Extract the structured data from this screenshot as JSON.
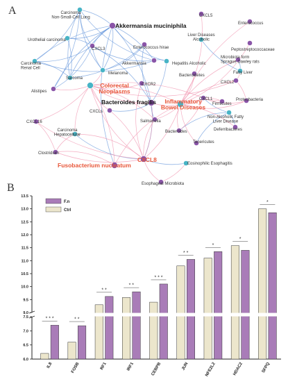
{
  "panel_a": {
    "letter": "A",
    "nodes": [
      {
        "id": "carcinoma-nsclc",
        "label": "Carcinoma\nNon-Small-Cell Lung",
        "kind": "teal",
        "style": "small"
      },
      {
        "id": "akkermansia-muciniphila",
        "label": "Akkermansia muciniphila",
        "kind": "purple",
        "style": "bold"
      },
      {
        "id": "cxcl5",
        "label": "CXCL5",
        "kind": "purple",
        "style": "small"
      },
      {
        "id": "enterococcus",
        "label": "Enterococcus",
        "kind": "purple",
        "style": "small"
      },
      {
        "id": "urothelial-carcinoma",
        "label": "Urothelial carcinoma",
        "kind": "teal",
        "style": "small"
      },
      {
        "id": "liver-diseases-alcoholic",
        "label": "Liver Diseases\nAlcoholic",
        "kind": "teal",
        "style": "small"
      },
      {
        "id": "peptostreptococcaceae",
        "label": "Peptostreptococcaceae",
        "kind": "purple",
        "style": "small"
      },
      {
        "id": "cxcl3",
        "label": "CXCL3",
        "kind": "purple",
        "style": "small"
      },
      {
        "id": "enterococcus-hirae",
        "label": "Enterococcus hirae",
        "kind": "purple",
        "style": "small"
      },
      {
        "id": "microbiota-rats",
        "label": "Microbiota form\nSprague Dawley rats",
        "kind": "purple",
        "style": "small"
      },
      {
        "id": "carcinoma-renal",
        "label": "Carcinoma\nRenal Cell",
        "kind": "teal",
        "style": "small"
      },
      {
        "id": "akkermansia",
        "label": "Akkermansia",
        "kind": "purple",
        "style": "small"
      },
      {
        "id": "hepatitis-alcoholic",
        "label": "Hepatitis Alcoholic",
        "kind": "teal",
        "style": "small"
      },
      {
        "id": "fatty-liver",
        "label": "Fatty Liver",
        "kind": "teal",
        "style": "small"
      },
      {
        "id": "melanoma",
        "label": "Melanoma",
        "kind": "teal",
        "style": "small"
      },
      {
        "id": "sarcoma",
        "label": "Sarcoma",
        "kind": "teal",
        "style": "small"
      },
      {
        "id": "bacteroidetes",
        "label": "Bacteroidetes",
        "kind": "purple",
        "style": "small"
      },
      {
        "id": "alistipes",
        "label": "Alistipes",
        "kind": "purple",
        "style": "small"
      },
      {
        "id": "cxcr2",
        "label": "CXCR2",
        "kind": "purple",
        "style": "small"
      },
      {
        "id": "cxcl2",
        "label": "CXCL2",
        "kind": "purple",
        "style": "small"
      },
      {
        "id": "colorectal-neoplasms",
        "label": "Colorectal\nNeoplasms",
        "kind": "teal",
        "style": "red"
      },
      {
        "id": "cxcl1",
        "label": "CXCL1",
        "kind": "purple",
        "style": "small"
      },
      {
        "id": "firmicutes",
        "label": "Firmicutes",
        "kind": "purple",
        "style": "small"
      },
      {
        "id": "inflammatory-bowel-diseases",
        "label": "Inflammatory\nBowel Diseases",
        "kind": "teal",
        "style": "red"
      },
      {
        "id": "proteobacteria",
        "label": "Proteobacteria",
        "kind": "purple",
        "style": "small"
      },
      {
        "id": "bacteroides-fragilis",
        "label": "Bacteroides fragilis",
        "kind": "purple",
        "style": "bold"
      },
      {
        "id": "cxcls",
        "label": "CXCLs",
        "kind": "purple",
        "style": "small"
      },
      {
        "id": "nafld",
        "label": "Non-Alcoholic Fatty\nLiver Disease",
        "kind": "teal",
        "style": "small"
      },
      {
        "id": "salmonella",
        "label": "Salmonella",
        "kind": "purple",
        "style": "small"
      },
      {
        "id": "cxcl16",
        "label": "CXCL16",
        "kind": "purple",
        "style": "small"
      },
      {
        "id": "deferribacteres",
        "label": "Deferribacteres",
        "kind": "purple",
        "style": "small"
      },
      {
        "id": "bacteroides",
        "label": "Bacteroides",
        "kind": "purple",
        "style": "small"
      },
      {
        "id": "carcinoma-hepatocellular",
        "label": "Carcinoma\nHepatocellular",
        "kind": "teal",
        "style": "small"
      },
      {
        "id": "tenericutes",
        "label": "Tenericutes",
        "kind": "purple",
        "style": "small"
      },
      {
        "id": "clostridium",
        "label": "Clostridium",
        "kind": "purple",
        "style": "small"
      },
      {
        "id": "cxcl8",
        "label": "CXCL8",
        "kind": "purple",
        "style": "red"
      },
      {
        "id": "fusobacterium-nucleatum",
        "label": "Fusobacterium nucleatum",
        "kind": "purple",
        "style": "red"
      },
      {
        "id": "eosinophilic-esophagitis",
        "label": "Eosinophilic Esophagitis",
        "kind": "teal",
        "style": "small"
      },
      {
        "id": "esophageal-microbiota",
        "label": "Esophageal Microbiota",
        "kind": "purple",
        "style": "small"
      }
    ],
    "edges": [
      [
        "carcinoma-nsclc",
        "cxcl3",
        "blue"
      ],
      [
        "carcinoma-nsclc",
        "akkermansia-muciniphila",
        "blue"
      ],
      [
        "carcinoma-nsclc",
        "sarcoma",
        "blue"
      ],
      [
        "carcinoma-nsclc",
        "alistipes",
        "blue"
      ],
      [
        "carcinoma-nsclc",
        "melanoma",
        "blue"
      ],
      [
        "carcinoma-nsclc",
        "carcinoma-renal",
        "blue"
      ],
      [
        "carcinoma-nsclc",
        "akkermansia",
        "blue"
      ],
      [
        "urothelial-carcinoma",
        "cxcl3",
        "blue"
      ],
      [
        "urothelial-carcinoma",
        "akkermansia-muciniphila",
        "blue"
      ],
      [
        "urothelial-carcinoma",
        "sarcoma",
        "blue"
      ],
      [
        "carcinoma-renal",
        "cxcl3",
        "blue"
      ],
      [
        "carcinoma-renal",
        "akkermansia-muciniphila",
        "blue"
      ],
      [
        "carcinoma-renal",
        "akkermansia",
        "blue"
      ],
      [
        "carcinoma-renal",
        "sarcoma",
        "blue"
      ],
      [
        "melanoma",
        "akkermansia-muciniphila",
        "blue"
      ],
      [
        "melanoma",
        "cxcl3",
        "blue"
      ],
      [
        "melanoma",
        "enterococcus-hirae",
        "blue"
      ],
      [
        "sarcoma",
        "akkermansia-muciniphila",
        "blue"
      ],
      [
        "sarcoma",
        "enterococcus-hirae",
        "blue"
      ],
      [
        "alistipes",
        "akkermansia-muciniphila",
        "blue"
      ],
      [
        "alistipes",
        "cxcl3",
        "blue"
      ],
      [
        "cxcl3",
        "akkermansia-muciniphila",
        "blue"
      ],
      [
        "cxcl3",
        "akkermansia",
        "blue"
      ],
      [
        "cxcl3",
        "bacteroides-fragilis",
        "blue"
      ],
      [
        "akkermansia-muciniphila",
        "hepatitis-alcoholic",
        "blue"
      ],
      [
        "akkermansia-muciniphila",
        "akkermansia",
        "blue"
      ],
      [
        "akkermansia-muciniphila",
        "fusobacterium-nucleatum",
        "blue"
      ],
      [
        "akkermansia-muciniphila",
        "bacteroides-fragilis",
        "blue"
      ],
      [
        "hepatitis-alcoholic",
        "akkermansia",
        "blue"
      ],
      [
        "hepatitis-alcoholic",
        "bacteroides-fragilis",
        "blue"
      ],
      [
        "enterococcus-hirae",
        "bacteroides-fragilis",
        "blue"
      ],
      [
        "bacteroides-fragilis",
        "cxcl8",
        "blue"
      ],
      [
        "cxcls",
        "bacteroides-fragilis",
        "blue"
      ],
      [
        "salmonella",
        "bacteroides-fragilis",
        "blue"
      ],
      [
        "carcinoma-hepatocellular",
        "cxcl8",
        "blue"
      ],
      [
        "eosinophilic-esophagitis",
        "cxcl8",
        "blue"
      ],
      [
        "fatty-liver",
        "microbiota-rats",
        "blue"
      ],
      [
        "fatty-liver",
        "liver-diseases-alcoholic",
        "blue"
      ],
      [
        "nafld",
        "bacteroides",
        "blue"
      ],
      [
        "nafld",
        "deferribacteres",
        "blue"
      ],
      [
        "nafld",
        "tenericutes",
        "blue"
      ],
      [
        "nafld",
        "cxcl1",
        "blue"
      ],
      [
        "colorectal-neoplasms",
        "cxcl8",
        "pink"
      ],
      [
        "colorectal-neoplasms",
        "fusobacterium-nucleatum",
        "pink"
      ],
      [
        "colorectal-neoplasms",
        "bacteroides-fragilis",
        "pink"
      ],
      [
        "colorectal-neoplasms",
        "alistipes",
        "pink"
      ],
      [
        "colorectal-neoplasms",
        "cxcr2",
        "pink"
      ],
      [
        "colorectal-neoplasms",
        "cxcl1",
        "pink"
      ],
      [
        "colorectal-neoplasms",
        "cxcls",
        "pink"
      ],
      [
        "colorectal-neoplasms",
        "salmonella",
        "pink"
      ],
      [
        "colorectal-neoplasms",
        "melanoma",
        "pink"
      ],
      [
        "colorectal-neoplasms",
        "cxcl16",
        "pink"
      ],
      [
        "colorectal-neoplasms",
        "carcinoma-hepatocellular",
        "pink"
      ],
      [
        "colorectal-neoplasms",
        "inflammatory-bowel-diseases",
        "pink"
      ],
      [
        "colorectal-neoplasms",
        "cxcl2",
        "pink"
      ],
      [
        "inflammatory-bowel-diseases",
        "cxcl8",
        "pink"
      ],
      [
        "inflammatory-bowel-diseases",
        "cxcl1",
        "pink"
      ],
      [
        "inflammatory-bowel-diseases",
        "cxcl2",
        "pink"
      ],
      [
        "inflammatory-bowel-diseases",
        "bacteroidetes",
        "pink"
      ],
      [
        "inflammatory-bowel-diseases",
        "firmicutes",
        "pink"
      ],
      [
        "inflammatory-bowel-diseases",
        "proteobacteria",
        "pink"
      ],
      [
        "inflammatory-bowel-diseases",
        "salmonella",
        "pink"
      ],
      [
        "inflammatory-bowel-diseases",
        "bacteroides",
        "pink"
      ],
      [
        "inflammatory-bowel-diseases",
        "bacteroides-fragilis",
        "pink"
      ],
      [
        "inflammatory-bowel-diseases",
        "cxcl5",
        "pink"
      ],
      [
        "inflammatory-bowel-diseases",
        "enterococcus",
        "pink"
      ],
      [
        "inflammatory-bowel-diseases",
        "peptostreptococcaceae",
        "pink"
      ],
      [
        "inflammatory-bowel-diseases",
        "microbiota-rats",
        "pink"
      ],
      [
        "inflammatory-bowel-diseases",
        "tenericutes",
        "pink"
      ],
      [
        "inflammatory-bowel-diseases",
        "deferribacteres",
        "pink"
      ],
      [
        "inflammatory-bowel-diseases",
        "fusobacterium-nucleatum",
        "pink"
      ],
      [
        "cxcl8",
        "clostridium",
        "pink"
      ],
      [
        "cxcl8",
        "esophageal-microbiota",
        "pink"
      ],
      [
        "cxcl8",
        "cxcl16",
        "pink"
      ],
      [
        "cxcl8",
        "carcinoma-hepatocellular",
        "pink"
      ],
      [
        "cxcl1",
        "firmicutes",
        "pink"
      ],
      [
        "cxcl1",
        "proteobacteria",
        "pink"
      ],
      [
        "cxcl1",
        "bacteroides",
        "pink"
      ],
      [
        "cxcl2",
        "fatty-liver",
        "pink"
      ],
      [
        "cxcl2",
        "proteobacteria",
        "pink"
      ],
      [
        "fusobacterium-nucleatum",
        "clostridium",
        "pink"
      ],
      [
        "eosinophilic-esophagitis",
        "esophageal-microbiota",
        "pink"
      ],
      [
        "salmonella",
        "cxcl8",
        "pink"
      ],
      [
        "bacteroides-fragilis",
        "cxcl8",
        "pink"
      ],
      [
        "cxcr2",
        "cxcl8",
        "pink"
      ],
      [
        "cxcls",
        "cxcl8",
        "pink"
      ],
      [
        "carcinoma-hepatocellular",
        "clostridium",
        "pink"
      ],
      [
        "cxcl16",
        "clostridium",
        "pink"
      ]
    ]
  },
  "panel_b": {
    "letter": "B",
    "chart_data": {
      "type": "bar",
      "categories": [
        "IL8",
        "FOSB",
        "RF1",
        "IRF1",
        "CEBPB",
        "JUN",
        "NFE2L2",
        "HDAC2",
        "SFPQ"
      ],
      "series": [
        {
          "name": "Ctrl",
          "values": [
            6.2,
            6.6,
            9.3,
            9.58,
            9.4,
            10.8,
            11.1,
            11.58,
            13.0
          ]
        },
        {
          "name": "F.n",
          "values": [
            7.2,
            7.18,
            9.62,
            9.8,
            10.1,
            11.05,
            11.35,
            11.4,
            12.85
          ]
        }
      ],
      "significance": [
        "* * *",
        "* *",
        "* *",
        "* *",
        "* * *",
        "* *",
        "*",
        "*",
        "*"
      ],
      "yticks": [
        6.0,
        6.5,
        7.0,
        7.5,
        9.0,
        9.5,
        10.0,
        10.5,
        11.0,
        11.5,
        12.0,
        12.5,
        13.0,
        13.5
      ],
      "ylim": [
        6.0,
        13.5
      ],
      "axis_break": [
        7.5,
        9.0
      ],
      "colors": {
        "Ctrl": "#ece6cc",
        "F.n": "#a97cb8"
      },
      "legend_position": "top-left"
    }
  },
  "colors": {
    "node_purple": "#8a55a8",
    "node_teal": "#48b4c6",
    "edge_blue": "#5a8fd8",
    "edge_pink": "#f08aa8",
    "label_red": "#e8573a"
  }
}
